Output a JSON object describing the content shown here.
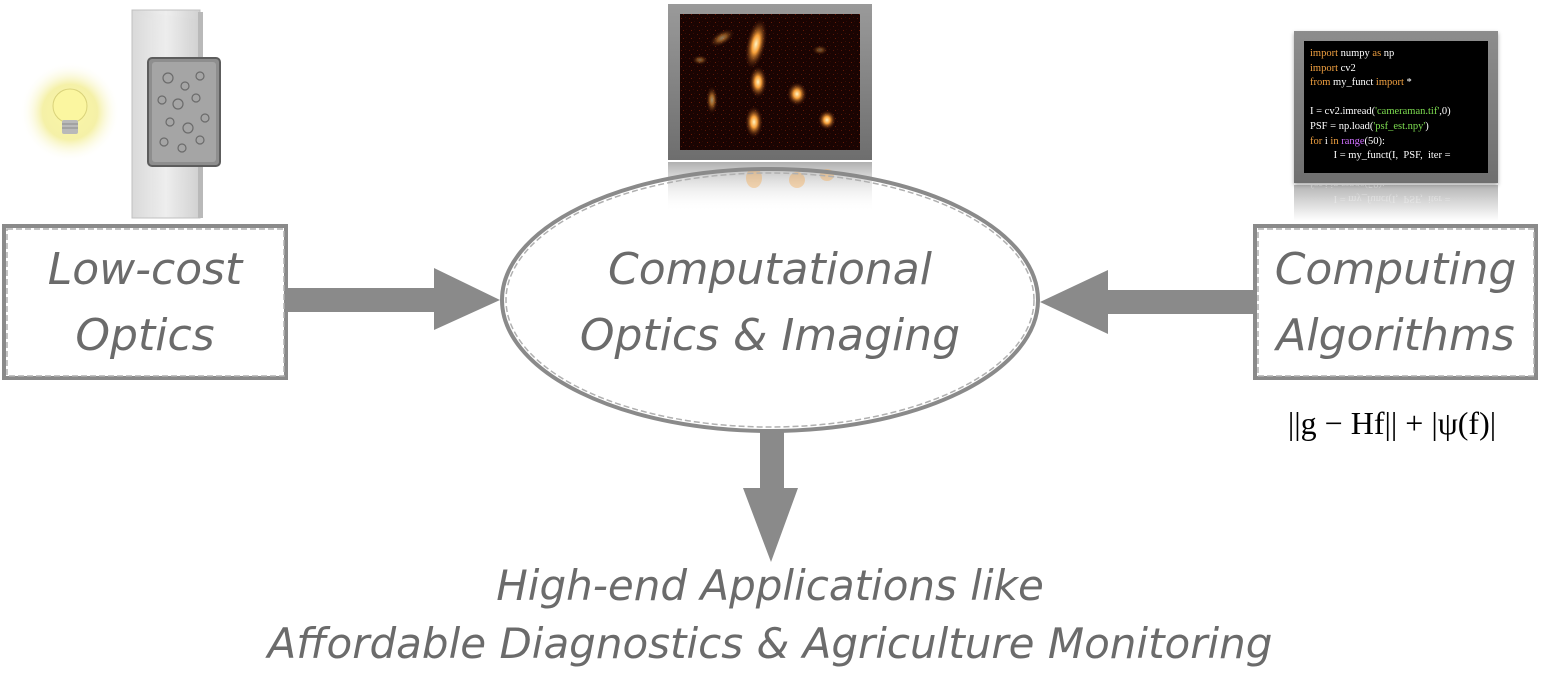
{
  "nodes": {
    "low_cost_optics": {
      "line1": "Low-cost",
      "line2": "Optics"
    },
    "computational": {
      "line1": "Computational",
      "line2": "Optics & Imaging"
    },
    "computing_algorithms": {
      "line1": "Computing",
      "line2": "Algorithms"
    },
    "applications": {
      "line1": "High-end Applications like",
      "line2": "Affordable Diagnostics & Agriculture Monitoring"
    }
  },
  "formula": "||g − Hf|| + |ψ(f)|",
  "code": {
    "lines": [
      [
        {
          "t": "import",
          "c": "kw"
        },
        {
          "t": " numpy ",
          "c": ""
        },
        {
          "t": "as",
          "c": "kw"
        },
        {
          "t": " np",
          "c": ""
        }
      ],
      [
        {
          "t": "import",
          "c": "kw"
        },
        {
          "t": " cv2",
          "c": ""
        }
      ],
      [
        {
          "t": "from",
          "c": "kw"
        },
        {
          "t": " my_funct ",
          "c": ""
        },
        {
          "t": "import",
          "c": "kw"
        },
        {
          "t": " *",
          "c": ""
        }
      ],
      [
        {
          "t": "",
          "c": ""
        }
      ],
      [
        {
          "t": "I = cv2.imread(",
          "c": ""
        },
        {
          "t": "'cameraman.tif'",
          "c": "str"
        },
        {
          "t": ",0)",
          "c": ""
        }
      ],
      [
        {
          "t": "PSF = np.load(",
          "c": ""
        },
        {
          "t": "'psf_est.npy'",
          "c": "str"
        },
        {
          "t": ")",
          "c": ""
        }
      ],
      [
        {
          "t": "for",
          "c": "kw"
        },
        {
          "t": " i ",
          "c": ""
        },
        {
          "t": "in",
          "c": "kw"
        },
        {
          "t": " ",
          "c": ""
        },
        {
          "t": "range",
          "c": "fn"
        },
        {
          "t": "(50):",
          "c": ""
        }
      ],
      [
        {
          "t": "         I = my_funct(I,  PSF,  iter =",
          "c": ""
        }
      ]
    ]
  },
  "colors": {
    "ink": "#8a8a8a",
    "text": "#6b6b6b",
    "bulb": "#f6f29a",
    "microscopy_hot": "#f7a03a"
  },
  "icons": [
    "light-bulb-icon",
    "glass-slide-icon",
    "microscopy-monitor-icon",
    "code-monitor-icon"
  ]
}
